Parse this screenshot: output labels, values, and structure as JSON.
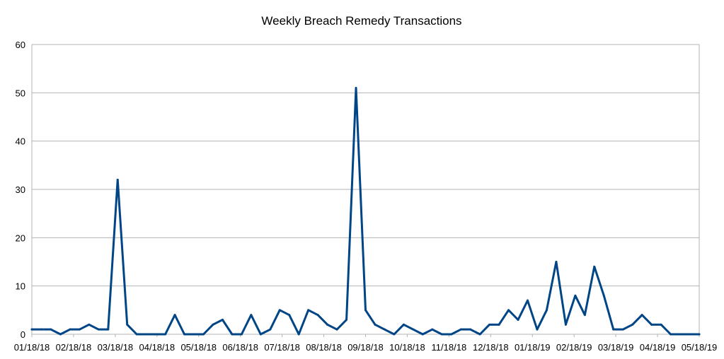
{
  "chart_data": {
    "type": "line",
    "title": "Weekly Breach Remedy Transactions",
    "xlabel": "",
    "ylabel": "",
    "ylim": [
      0,
      60
    ],
    "yticks": [
      0,
      10,
      20,
      30,
      40,
      50,
      60
    ],
    "grid": true,
    "legend": "none",
    "x_tick_labels": [
      "01/18/18",
      "02/18/18",
      "03/18/18",
      "04/18/18",
      "05/18/18",
      "06/18/18",
      "07/18/18",
      "08/18/18",
      "09/18/18",
      "10/18/18",
      "11/18/18",
      "12/18/18",
      "01/18/19",
      "02/18/19",
      "03/18/19",
      "04/18/19",
      "05/18/19"
    ],
    "series": [
      {
        "color": "#004586",
        "values": [
          1,
          1,
          1,
          0,
          1,
          1,
          2,
          1,
          1,
          32,
          2,
          0,
          0,
          0,
          0,
          4,
          0,
          0,
          0,
          2,
          3,
          0,
          0,
          4,
          0,
          1,
          5,
          4,
          0,
          5,
          4,
          2,
          1,
          3,
          51,
          5,
          2,
          1,
          0,
          2,
          1,
          0,
          1,
          0,
          0,
          1,
          1,
          0,
          2,
          2,
          5,
          3,
          7,
          1,
          5,
          15,
          2,
          8,
          4,
          14,
          8,
          1,
          1,
          2,
          4,
          2,
          2,
          0,
          0,
          0,
          0
        ]
      }
    ]
  }
}
